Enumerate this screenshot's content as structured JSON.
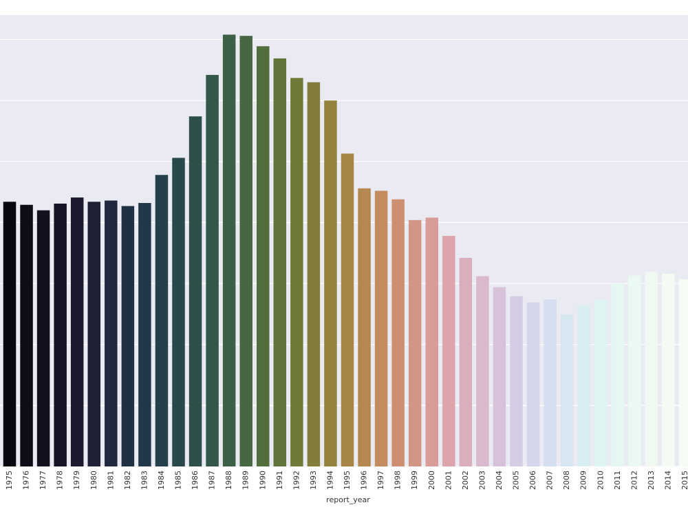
{
  "chart_data": {
    "type": "bar",
    "title": "",
    "xlabel": "report_year",
    "ylabel": "",
    "categories": [
      "1975",
      "1976",
      "1977",
      "1978",
      "1979",
      "1980",
      "1981",
      "1982",
      "1983",
      "1984",
      "1985",
      "1986",
      "1987",
      "1988",
      "1989",
      "1990",
      "1991",
      "1992",
      "1993",
      "1994",
      "1995",
      "1996",
      "1997",
      "1998",
      "1999",
      "2000",
      "2001",
      "2002",
      "2003",
      "2004",
      "2005",
      "2006",
      "2007",
      "2008",
      "2009",
      "2010",
      "2011",
      "2012",
      "2013",
      "2014",
      "2015"
    ],
    "values": [
      4.34,
      4.29,
      4.2,
      4.31,
      4.41,
      4.34,
      4.36,
      4.27,
      4.32,
      4.78,
      5.06,
      5.74,
      6.42,
      7.08,
      7.06,
      6.89,
      6.69,
      6.37,
      6.3,
      6.0,
      5.13,
      4.56,
      4.52,
      4.38,
      4.04,
      4.08,
      3.78,
      3.42,
      3.12,
      2.94,
      2.79,
      2.69,
      2.74,
      2.49,
      2.65,
      2.73,
      3.0,
      3.13,
      3.19,
      3.16,
      3.07
    ],
    "ylim": [
      0,
      7.4
    ],
    "grid": true,
    "colors": [
      "#0b0710",
      "#0f0b17",
      "#140f1e",
      "#181426",
      "#1b1a2e",
      "#1e2136",
      "#1f283d",
      "#203043",
      "#223848",
      "#24404b",
      "#28484c",
      "#2d504b",
      "#335849",
      "#3b6045",
      "#466741",
      "#536e3d",
      "#61743a",
      "#717938",
      "#827e39",
      "#94823d",
      "#a68545",
      "#b58851",
      "#c28c60",
      "#cc9071",
      "#d39684",
      "#d89d98",
      "#dba5ab",
      "#dbaebd",
      "#dab8cd",
      "#d8c2da",
      "#d6cce4",
      "#d4d6eb",
      "#d4dfef",
      "#d6e7f1",
      "#d9eef2",
      "#def3f2",
      "#e4f7f2",
      "#eaf9f2",
      "#eff9f2",
      "#f3fbf3",
      "#f6fcf4"
    ]
  }
}
